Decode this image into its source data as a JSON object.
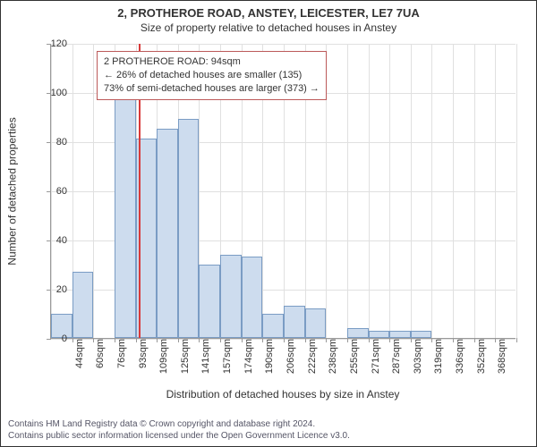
{
  "title_main": "2, PROTHEROE ROAD, ANSTEY, LEICESTER, LE7 7UA",
  "title_sub": "Size of property relative to detached houses in Anstey",
  "yaxis_label": "Number of detached properties",
  "xaxis_label": "Distribution of detached houses by size in Anstey",
  "annotation": {
    "line1": "2 PROTHEROE ROAD: 94sqm",
    "line2": "← 26% of detached houses are smaller (135)",
    "line3": "73% of semi-detached houses are larger (373) →"
  },
  "footer": {
    "line1": "Contains HM Land Registry data © Crown copyright and database right 2024.",
    "line2": "Contains public sector information licensed under the Open Government Licence v3.0."
  },
  "chart": {
    "type": "histogram",
    "ymax": 120,
    "ytick_step": 20,
    "yticks": [
      0,
      20,
      40,
      60,
      80,
      100,
      120
    ],
    "bar_color": "#cddcee",
    "bar_border": "#7a9cc4",
    "grid_color": "#e0e0e0",
    "marker_color": "#d93a3a",
    "marker_value": 94,
    "background": "#ffffff",
    "x_start": 28,
    "x_bin_width": 16,
    "bin_count": 22,
    "x_labels": [
      "44sqm",
      "60sqm",
      "76sqm",
      "93sqm",
      "109sqm",
      "125sqm",
      "141sqm",
      "157sqm",
      "174sqm",
      "190sqm",
      "206sqm",
      "222sqm",
      "238sqm",
      "255sqm",
      "271sqm",
      "287sqm",
      "303sqm",
      "319sqm",
      "336sqm",
      "352sqm",
      "368sqm"
    ],
    "values": [
      10,
      27,
      0,
      97,
      81,
      85,
      89,
      30,
      34,
      33,
      10,
      13,
      12,
      0,
      4,
      3,
      3,
      3,
      0,
      0,
      0,
      0
    ]
  }
}
